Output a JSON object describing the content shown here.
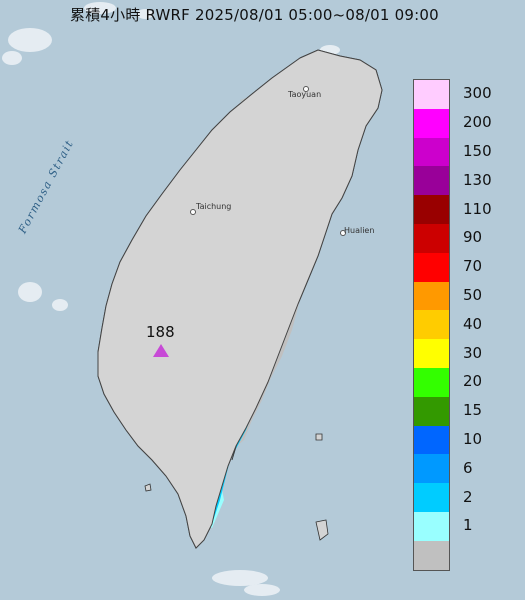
{
  "title": "累積4小時 RWRF 2025/08/01 05:00~08/01 09:00",
  "strait_label": "Formosa Strait",
  "cities": [
    {
      "name": "Taoyuan"
    },
    {
      "name": "Taichung"
    },
    {
      "name": "Hualien"
    }
  ],
  "max_value": "188",
  "legend": {
    "items": [
      {
        "label": "300",
        "color": "#ffccff"
      },
      {
        "label": "200",
        "color": "#ff00ff"
      },
      {
        "label": "150",
        "color": "#cc00cc"
      },
      {
        "label": "130",
        "color": "#990099"
      },
      {
        "label": "110",
        "color": "#990000"
      },
      {
        "label": "90",
        "color": "#cc0000"
      },
      {
        "label": "70",
        "color": "#ff0000"
      },
      {
        "label": "50",
        "color": "#ff9900"
      },
      {
        "label": "40",
        "color": "#ffcc00"
      },
      {
        "label": "30",
        "color": "#ffff00"
      },
      {
        "label": "20",
        "color": "#33ff00"
      },
      {
        "label": "15",
        "color": "#339900"
      },
      {
        "label": "10",
        "color": "#0066ff"
      },
      {
        "label": "6",
        "color": "#0099ff"
      },
      {
        "label": "2",
        "color": "#00ccff"
      },
      {
        "label": "1",
        "color": "#99ffff"
      },
      {
        "label": "",
        "color": "#c0c0c0"
      }
    ]
  }
}
